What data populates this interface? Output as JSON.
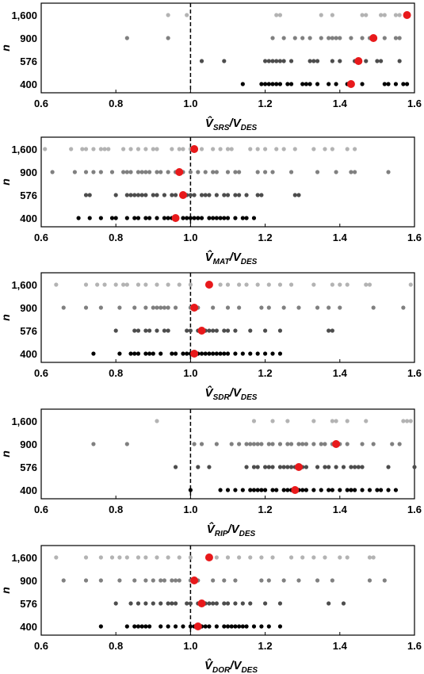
{
  "chart_data": [
    {
      "type": "scatter",
      "xlabel": {
        "main": "V̂",
        "sub": "SRS",
        "tail": "/V",
        "tailsub": "DES"
      },
      "ylabel": "n",
      "xlim": [
        0.6,
        1.6
      ],
      "xticks": [
        "0.6",
        "0.8",
        "1.0",
        "1.2",
        "1.4",
        "1.6"
      ],
      "categories": [
        "400",
        "576",
        "900",
        "1,600"
      ],
      "reference_line_x": 1.0,
      "series": [
        {
          "category": "1,600",
          "color": "#b3b3b3",
          "mean": 1.58,
          "values": [
            0.94,
            0.99,
            1.23,
            1.24,
            1.35,
            1.38,
            1.46,
            1.47,
            1.51,
            1.52,
            1.55,
            1.56
          ]
        },
        {
          "category": "900",
          "color": "#808080",
          "mean": 1.49,
          "values": [
            0.83,
            0.94,
            1.22,
            1.25,
            1.28,
            1.3,
            1.32,
            1.35,
            1.37,
            1.38,
            1.39,
            1.4,
            1.43,
            1.46,
            1.48,
            1.52,
            1.55,
            1.56
          ]
        },
        {
          "category": "576",
          "color": "#4d4d4d",
          "mean": 1.45,
          "values": [
            1.03,
            1.09,
            1.2,
            1.21,
            1.22,
            1.23,
            1.24,
            1.25,
            1.27,
            1.32,
            1.33,
            1.34,
            1.38,
            1.4,
            1.44,
            1.47,
            1.5,
            1.51,
            1.56
          ]
        },
        {
          "category": "400",
          "color": "#000000",
          "mean": 1.43,
          "values": [
            1.14,
            1.19,
            1.2,
            1.21,
            1.22,
            1.23,
            1.24,
            1.26,
            1.27,
            1.3,
            1.31,
            1.32,
            1.34,
            1.37,
            1.39,
            1.42,
            1.46,
            1.52,
            1.53,
            1.55,
            1.57,
            1.58
          ]
        }
      ]
    },
    {
      "type": "scatter",
      "xlabel": {
        "main": "V̂",
        "sub": "MAT",
        "tail": "/V",
        "tailsub": "DES"
      },
      "ylabel": "n",
      "xlim": [
        0.6,
        1.6
      ],
      "xticks": [
        "0.6",
        "0.8",
        "1.0",
        "1.2",
        "1.4",
        "1.6"
      ],
      "categories": [
        "400",
        "576",
        "900",
        "1,600"
      ],
      "reference_line_x": 1.0,
      "series": [
        {
          "category": "1,600",
          "color": "#b3b3b3",
          "mean": 1.01,
          "values": [
            0.61,
            0.68,
            0.71,
            0.72,
            0.74,
            0.76,
            0.77,
            0.78,
            0.82,
            0.84,
            0.86,
            0.88,
            0.9,
            0.91,
            0.95,
            0.97,
            0.98,
            1.0,
            1.03,
            1.06,
            1.08,
            1.1,
            1.11,
            1.16,
            1.18,
            1.2,
            1.23,
            1.25,
            1.28,
            1.33,
            1.36,
            1.38,
            1.42,
            1.44
          ]
        },
        {
          "category": "900",
          "color": "#808080",
          "mean": 0.97,
          "values": [
            0.63,
            0.69,
            0.72,
            0.74,
            0.76,
            0.79,
            0.82,
            0.83,
            0.84,
            0.86,
            0.87,
            0.88,
            0.89,
            0.91,
            0.92,
            0.94,
            0.96,
            0.98,
            1.0,
            1.02,
            1.04,
            1.06,
            1.07,
            1.1,
            1.12,
            1.13,
            1.18,
            1.2,
            1.22,
            1.27,
            1.34,
            1.39,
            1.43,
            1.44,
            1.53
          ]
        },
        {
          "category": "576",
          "color": "#4d4d4d",
          "mean": 0.98,
          "values": [
            0.72,
            0.73,
            0.8,
            0.83,
            0.84,
            0.85,
            0.86,
            0.87,
            0.88,
            0.9,
            0.91,
            0.93,
            0.95,
            0.96,
            0.99,
            1.0,
            1.01,
            1.03,
            1.04,
            1.05,
            1.07,
            1.09,
            1.1,
            1.12,
            1.13,
            1.15,
            1.18,
            1.19,
            1.28,
            1.29
          ]
        },
        {
          "category": "400",
          "color": "#000000",
          "mean": 0.96,
          "values": [
            0.7,
            0.73,
            0.76,
            0.79,
            0.8,
            0.83,
            0.85,
            0.86,
            0.88,
            0.89,
            0.91,
            0.93,
            0.94,
            0.95,
            0.96,
            0.98,
            0.99,
            1.0,
            1.01,
            1.02,
            1.03,
            1.05,
            1.06,
            1.07,
            1.08,
            1.09,
            1.1,
            1.12,
            1.14,
            1.15,
            1.17
          ]
        }
      ]
    },
    {
      "type": "scatter",
      "xlabel": {
        "main": "V̂",
        "sub": "SDR",
        "tail": "/V",
        "tailsub": "DES"
      },
      "ylabel": "n",
      "xlim": [
        0.6,
        1.6
      ],
      "xticks": [
        "0.6",
        "0.8",
        "1.0",
        "1.2",
        "1.4",
        "1.6"
      ],
      "categories": [
        "400",
        "576",
        "900",
        "1,600"
      ],
      "reference_line_x": 1.0,
      "series": [
        {
          "category": "1,600",
          "color": "#b3b3b3",
          "mean": 1.05,
          "values": [
            0.64,
            0.72,
            0.75,
            0.77,
            0.8,
            0.82,
            0.83,
            0.86,
            0.88,
            0.91,
            0.94,
            0.97,
            1.0,
            1.05,
            1.08,
            1.1,
            1.13,
            1.15,
            1.18,
            1.21,
            1.24,
            1.27,
            1.33,
            1.38,
            1.4,
            1.42,
            1.47,
            1.48,
            1.59
          ]
        },
        {
          "category": "900",
          "color": "#808080",
          "mean": 1.01,
          "values": [
            0.66,
            0.72,
            0.76,
            0.81,
            0.85,
            0.88,
            0.9,
            0.91,
            0.92,
            0.93,
            0.94,
            0.96,
            1.0,
            1.02,
            1.06,
            1.1,
            1.13,
            1.19,
            1.21,
            1.25,
            1.29,
            1.34,
            1.37,
            1.4,
            1.49,
            1.57
          ]
        },
        {
          "category": "576",
          "color": "#4d4d4d",
          "mean": 1.03,
          "values": [
            0.8,
            0.85,
            0.86,
            0.88,
            0.89,
            0.91,
            0.93,
            0.94,
            0.99,
            1.0,
            1.02,
            1.04,
            1.05,
            1.06,
            1.07,
            1.09,
            1.1,
            1.12,
            1.16,
            1.2,
            1.24,
            1.37,
            1.38
          ]
        },
        {
          "category": "400",
          "color": "#000000",
          "mean": 1.01,
          "values": [
            0.74,
            0.81,
            0.84,
            0.85,
            0.86,
            0.88,
            0.89,
            0.9,
            0.92,
            0.95,
            0.96,
            0.98,
            0.99,
            1.0,
            1.02,
            1.03,
            1.04,
            1.05,
            1.06,
            1.07,
            1.08,
            1.09,
            1.1,
            1.12,
            1.14,
            1.16,
            1.18,
            1.2,
            1.22,
            1.24
          ]
        }
      ]
    },
    {
      "type": "scatter",
      "xlabel": {
        "main": "V̂",
        "sub": "RIP",
        "tail": "/V",
        "tailsub": "DES"
      },
      "ylabel": "n",
      "xlim": [
        0.6,
        1.6
      ],
      "xticks": [
        "0.6",
        "0.8",
        "1.0",
        "1.2",
        "1.4",
        "1.6"
      ],
      "categories": [
        "400",
        "576",
        "900",
        "1,600"
      ],
      "reference_line_x": 1.0,
      "series": [
        {
          "category": "1,600",
          "color": "#b3b3b3",
          "mean": null,
          "values": [
            0.91,
            1.17,
            1.22,
            1.26,
            1.33,
            1.38,
            1.39,
            1.42,
            1.47,
            1.57,
            1.58,
            1.59
          ]
        },
        {
          "category": "900",
          "color": "#808080",
          "mean": 1.39,
          "values": [
            0.74,
            0.83,
            1.01,
            1.03,
            1.07,
            1.11,
            1.13,
            1.15,
            1.16,
            1.17,
            1.18,
            1.19,
            1.21,
            1.22,
            1.24,
            1.26,
            1.27,
            1.29,
            1.3,
            1.31,
            1.33,
            1.35,
            1.36,
            1.38,
            1.4,
            1.42,
            1.46,
            1.49,
            1.54,
            1.56
          ]
        },
        {
          "category": "576",
          "color": "#4d4d4d",
          "mean": 1.29,
          "values": [
            0.96,
            1.02,
            1.05,
            1.15,
            1.17,
            1.18,
            1.2,
            1.21,
            1.22,
            1.24,
            1.25,
            1.26,
            1.27,
            1.28,
            1.3,
            1.31,
            1.34,
            1.36,
            1.37,
            1.39,
            1.41,
            1.43,
            1.44,
            1.45,
            1.46,
            1.53,
            1.6
          ]
        },
        {
          "category": "400",
          "color": "#000000",
          "mean": 1.28,
          "values": [
            1.0,
            1.08,
            1.1,
            1.12,
            1.14,
            1.16,
            1.17,
            1.18,
            1.19,
            1.2,
            1.22,
            1.23,
            1.25,
            1.26,
            1.27,
            1.29,
            1.3,
            1.31,
            1.33,
            1.35,
            1.37,
            1.38,
            1.4,
            1.42,
            1.43,
            1.44,
            1.46,
            1.48,
            1.5,
            1.51,
            1.53,
            1.55
          ]
        }
      ]
    },
    {
      "type": "scatter",
      "xlabel": {
        "main": "V̂",
        "sub": "DOR",
        "tail": "/V",
        "tailsub": "DES"
      },
      "ylabel": "n",
      "xlim": [
        0.6,
        1.6
      ],
      "xticks": [
        "0.6",
        "0.8",
        "1.0",
        "1.2",
        "1.4",
        "1.6"
      ],
      "categories": [
        "400",
        "576",
        "900",
        "1,600"
      ],
      "reference_line_x": 1.0,
      "series": [
        {
          "category": "1,600",
          "color": "#b3b3b3",
          "mean": 1.05,
          "values": [
            0.64,
            0.72,
            0.76,
            0.79,
            0.81,
            0.83,
            0.86,
            0.88,
            0.91,
            0.94,
            0.97,
            1.0,
            1.05,
            1.07,
            1.1,
            1.13,
            1.16,
            1.19,
            1.22,
            1.27,
            1.3,
            1.33,
            1.36,
            1.4,
            1.42,
            1.48,
            1.49
          ]
        },
        {
          "category": "900",
          "color": "#808080",
          "mean": 1.01,
          "values": [
            0.66,
            0.72,
            0.76,
            0.81,
            0.85,
            0.88,
            0.9,
            0.92,
            0.93,
            0.95,
            0.96,
            0.97,
            1.0,
            1.02,
            1.06,
            1.09,
            1.12,
            1.19,
            1.21,
            1.25,
            1.29,
            1.34,
            1.38,
            1.48,
            1.52
          ]
        },
        {
          "category": "576",
          "color": "#4d4d4d",
          "mean": 1.03,
          "values": [
            0.8,
            0.84,
            0.86,
            0.88,
            0.9,
            0.92,
            0.94,
            0.95,
            0.96,
            0.99,
            1.0,
            1.02,
            1.04,
            1.05,
            1.06,
            1.07,
            1.09,
            1.1,
            1.12,
            1.14,
            1.16,
            1.2,
            1.24,
            1.37,
            1.41
          ]
        },
        {
          "category": "400",
          "color": "#000000",
          "mean": 1.02,
          "values": [
            0.76,
            0.83,
            0.85,
            0.86,
            0.87,
            0.88,
            0.89,
            0.92,
            0.94,
            0.96,
            0.98,
            1.0,
            1.01,
            1.03,
            1.04,
            1.05,
            1.07,
            1.09,
            1.1,
            1.11,
            1.12,
            1.13,
            1.14,
            1.15,
            1.17,
            1.19,
            1.21,
            1.24
          ]
        }
      ]
    }
  ]
}
